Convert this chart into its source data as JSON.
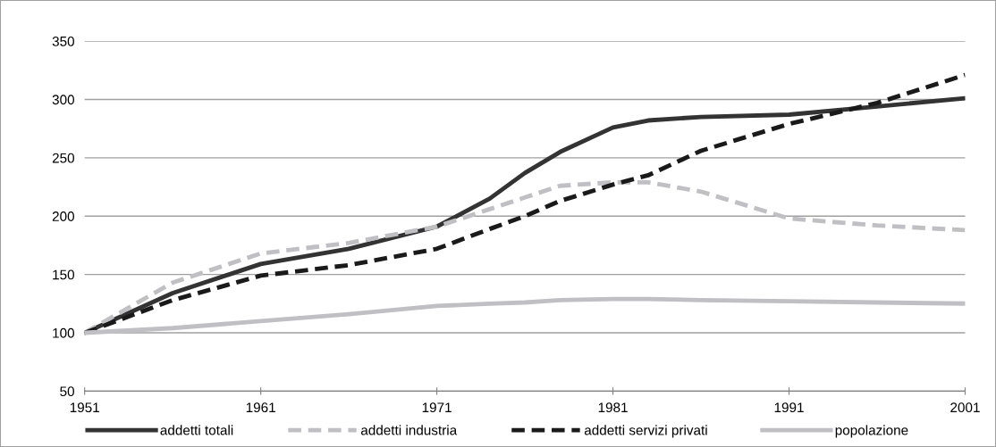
{
  "chart_data": {
    "type": "line",
    "x": [
      1951,
      1956,
      1961,
      1966,
      1971,
      1974,
      1976,
      1978,
      1981,
      1983,
      1986,
      1991,
      1996,
      2001
    ],
    "series": [
      {
        "name": "addetti totali",
        "color": "#333333",
        "line_style": "solid",
        "values": [
          100,
          134,
          159,
          172,
          191,
          215,
          237,
          255,
          276,
          282,
          285,
          287,
          294,
          301
        ]
      },
      {
        "name": "addetti industria",
        "color": "#c0c0c4",
        "line_style": "dashed",
        "values": [
          100,
          143,
          168,
          177,
          191,
          206,
          216,
          226,
          229,
          229,
          221,
          198,
          192,
          188
        ]
      },
      {
        "name": "addetti servizi privati",
        "color": "#1a1a1a",
        "line_style": "dashed",
        "values": [
          100,
          128,
          149,
          158,
          172,
          189,
          200,
          213,
          227,
          235,
          256,
          279,
          297,
          321
        ]
      },
      {
        "name": "popolazione",
        "color": "#c0c0c4",
        "line_style": "solid",
        "values": [
          100,
          104,
          110,
          116,
          123,
          125,
          126,
          128,
          129,
          129,
          128,
          127,
          126,
          125
        ]
      }
    ],
    "xlim": [
      1951,
      2001
    ],
    "xticks": [
      1951,
      1961,
      1971,
      1981,
      1991,
      2001
    ],
    "ylim": [
      50,
      350
    ],
    "yticks": [
      50,
      100,
      150,
      200,
      250,
      300,
      350
    ],
    "grid": "y",
    "legend": "bottom",
    "marker": "none"
  }
}
